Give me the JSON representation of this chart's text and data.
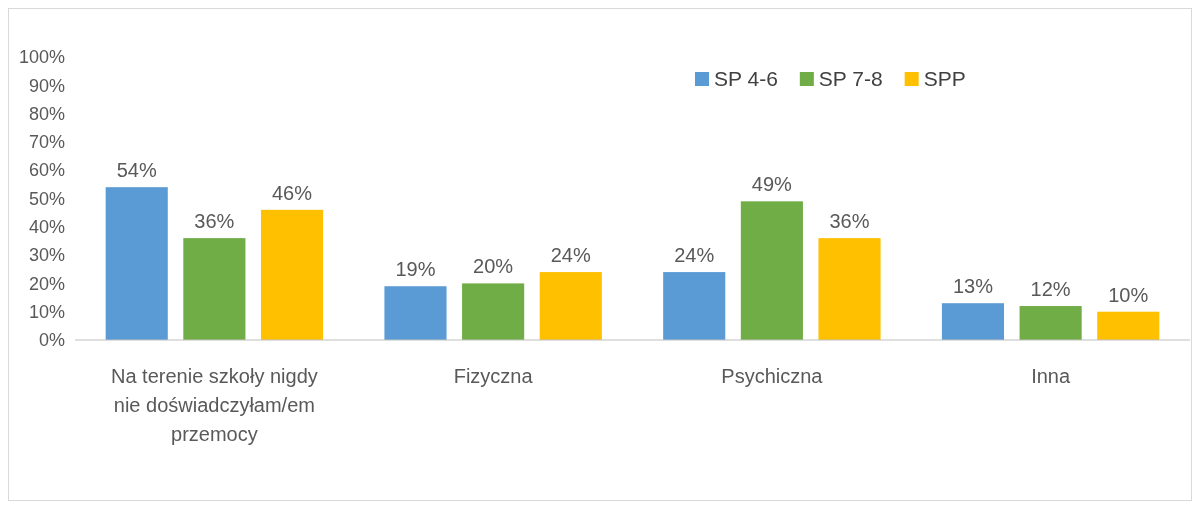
{
  "chart_data": {
    "type": "bar",
    "categories": [
      "Na terenie szkoły nigdy nie doświadczyłam/em przemocy",
      "Fizyczna",
      "Psychiczna",
      "Inna"
    ],
    "series": [
      {
        "name": "SP 4-6",
        "color": "#5b9bd5",
        "values": [
          54,
          19,
          24,
          13
        ]
      },
      {
        "name": "SP 7-8",
        "color": "#70ad47",
        "values": [
          36,
          20,
          49,
          12
        ]
      },
      {
        "name": "SPP",
        "color": "#ffc000",
        "values": [
          46,
          24,
          36,
          10
        ]
      }
    ],
    "ylim": [
      0,
      100
    ],
    "yticks": [
      {
        "value": 0,
        "label": "0%"
      },
      {
        "value": 10,
        "label": "10%"
      },
      {
        "value": 20,
        "label": "20%"
      },
      {
        "value": 30,
        "label": "30%"
      },
      {
        "value": 40,
        "label": "40%"
      },
      {
        "value": 50,
        "label": "50%"
      },
      {
        "value": 60,
        "label": "60%"
      },
      {
        "value": 70,
        "label": "70%"
      },
      {
        "value": 80,
        "label": "80%"
      },
      {
        "value": 90,
        "label": "90%"
      },
      {
        "value": 100,
        "label": "100%"
      }
    ],
    "value_labels": [
      [
        "54%",
        "19%",
        "24%",
        "13%"
      ],
      [
        "36%",
        "20%",
        "49%",
        "12%"
      ],
      [
        "46%",
        "24%",
        "36%",
        "10%"
      ]
    ],
    "legend": "top right",
    "grid": false
  }
}
